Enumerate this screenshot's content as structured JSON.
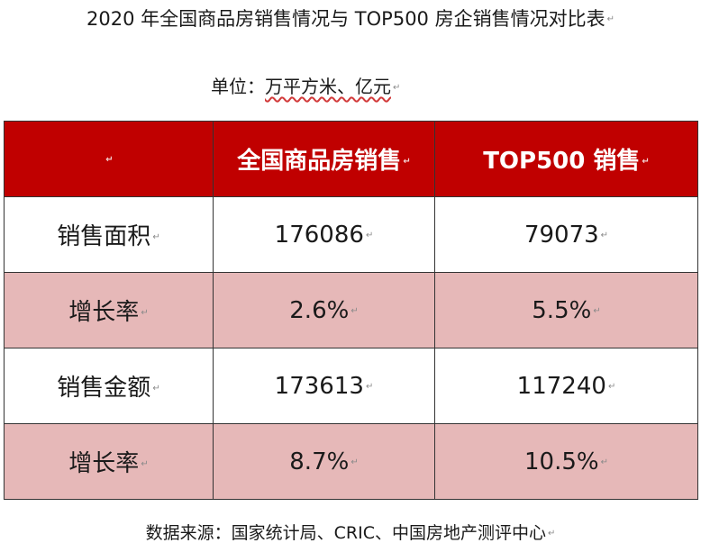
{
  "title": "2020 年全国商品房销售情况与 TOP500 房企销售情况对比表",
  "unit": {
    "label": "单位：",
    "value": "万平方米、亿元"
  },
  "table": {
    "headers": [
      "",
      "全国商品房销售",
      "TOP500 销售"
    ],
    "rows": [
      {
        "label": "销售面积",
        "national": "176086",
        "top500": "79073"
      },
      {
        "label": "增长率",
        "national": "2.6%",
        "top500": "5.5%"
      },
      {
        "label": "销售金额",
        "national": "173613",
        "top500": "117240"
      },
      {
        "label": "增长率",
        "national": "8.7%",
        "top500": "10.5%"
      }
    ]
  },
  "source": "数据来源：国家统计局、CRIC、中国房地产测评中心",
  "colors": {
    "header_bg": "#c00000",
    "alt_row_bg": "#e6b8b8",
    "border": "#333333"
  }
}
